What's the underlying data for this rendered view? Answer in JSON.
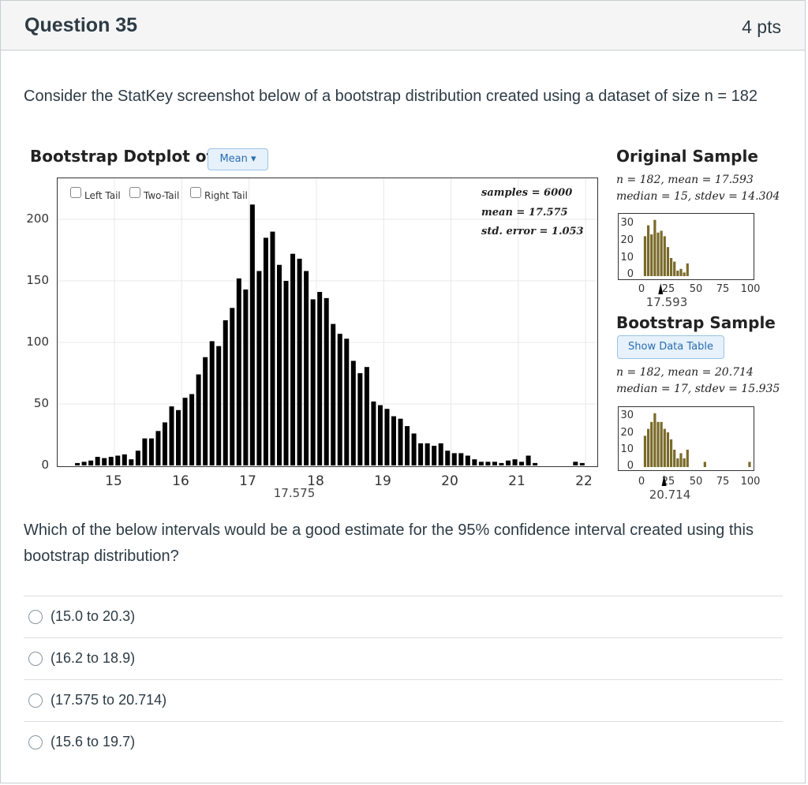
{
  "question": {
    "title": "Question 35",
    "points": "4 pts"
  },
  "intro": "Consider the StatKey screenshot below of a bootstrap distribution created using a dataset of size n = 182",
  "statkey": {
    "dotplot_title": "Bootstrap Dotplot of",
    "mean_button": "Mean",
    "tails": [
      "Left Tail",
      "Two-Tail",
      "Right Tail"
    ],
    "stats": [
      "samples = 6000",
      "mean = 17.575",
      "std. error = 1.053"
    ],
    "mean_marker": "17.575",
    "original": {
      "title": "Original Sample",
      "line1": "n = 182, mean = 17.593",
      "line2": "median = 15, stdev = 14.304",
      "mean_marker": "17.593"
    },
    "bootstrap": {
      "title": "Bootstrap Sample",
      "show_button": "Show Data Table",
      "line1": "n = 182, mean = 20.714",
      "line2": "median = 17, stdev = 15.935",
      "mean_marker": "20.714"
    }
  },
  "colors": {
    "bar": "#000000",
    "mini_bar": "#7a6a2a",
    "accent": "#2a6db0"
  },
  "chart_data": [
    {
      "type": "bar",
      "ylim": [
        0,
        200
      ],
      "xlim": [
        14.3,
        22.3
      ],
      "yticks": [
        "200",
        "150",
        "100",
        "50",
        "0"
      ],
      "xticks": [
        "15",
        "16",
        "17",
        "18",
        "19",
        "20",
        "21",
        "22"
      ],
      "grid": true,
      "x": [
        14.45,
        14.55,
        14.65,
        14.75,
        14.85,
        14.95,
        15.05,
        15.15,
        15.25,
        15.35,
        15.45,
        15.55,
        15.65,
        15.75,
        15.85,
        15.95,
        16.05,
        16.15,
        16.25,
        16.35,
        16.45,
        16.55,
        16.65,
        16.75,
        16.85,
        16.95,
        17.05,
        17.15,
        17.25,
        17.35,
        17.45,
        17.55,
        17.65,
        17.75,
        17.85,
        17.95,
        18.05,
        18.15,
        18.25,
        18.35,
        18.45,
        18.55,
        18.65,
        18.75,
        18.85,
        18.95,
        19.05,
        19.15,
        19.25,
        19.35,
        19.45,
        19.55,
        19.65,
        19.75,
        19.85,
        19.95,
        20.05,
        20.15,
        20.25,
        20.35,
        20.45,
        20.55,
        20.65,
        20.75,
        20.85,
        20.95,
        21.05,
        21.15,
        21.25,
        21.85,
        21.95
      ],
      "values": [
        2,
        3,
        4,
        7,
        6,
        7,
        8,
        9,
        5,
        12,
        22,
        22,
        28,
        35,
        48,
        45,
        55,
        58,
        74,
        88,
        101,
        97,
        118,
        128,
        152,
        143,
        212,
        158,
        185,
        190,
        163,
        150,
        172,
        168,
        158,
        135,
        141,
        136,
        115,
        107,
        103,
        85,
        75,
        80,
        52,
        49,
        46,
        40,
        38,
        32,
        26,
        18,
        18,
        16,
        18,
        12,
        10,
        10,
        8,
        5,
        3,
        3,
        3,
        2,
        4,
        5,
        3,
        8,
        2,
        3,
        2
      ]
    },
    {
      "type": "bar",
      "title": "Original Sample",
      "ylim": [
        0,
        35
      ],
      "xlim": [
        0,
        100
      ],
      "yticks": [
        "30",
        "20",
        "10",
        "0"
      ],
      "xticks": [
        "0",
        "25",
        "50",
        "75",
        "100"
      ],
      "x": [
        2.5,
        5.5,
        8.5,
        11.5,
        14.5,
        17.5,
        20.5,
        23.5,
        26.5,
        29.5,
        32.5,
        35.5,
        38.5,
        41.5
      ],
      "values": [
        22,
        28,
        23,
        31,
        24,
        25,
        22,
        16,
        10,
        8,
        3,
        4,
        2,
        7
      ]
    },
    {
      "type": "bar",
      "title": "Bootstrap Sample",
      "ylim": [
        0,
        35
      ],
      "xlim": [
        0,
        100
      ],
      "yticks": [
        "30",
        "20",
        "10",
        "0"
      ],
      "xticks": [
        "0",
        "25",
        "50",
        "75",
        "100"
      ],
      "x": [
        2.5,
        5.5,
        8.5,
        11.5,
        14.5,
        17.5,
        20.5,
        23.5,
        26.5,
        29.5,
        32.5,
        35.5,
        38.5,
        41.5,
        57.5,
        98.5
      ],
      "values": [
        18,
        22,
        26,
        31,
        26,
        26,
        22,
        20,
        16,
        10,
        5,
        8,
        5,
        10,
        3,
        3
      ]
    }
  ],
  "question2": "Which of the below intervals would be a good estimate for the 95% confidence interval created using this bootstrap distribution?",
  "options": [
    "(15.0 to 20.3)",
    "(16.2 to 18.9)",
    "(17.575 to 20.714)",
    "(15.6 to 19.7)"
  ]
}
